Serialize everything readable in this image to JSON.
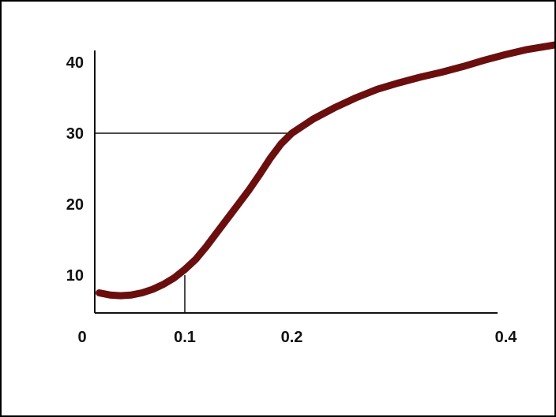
{
  "chart_data": {
    "type": "line",
    "title": "",
    "xlabel": "",
    "ylabel": "",
    "x_ticks": [
      0.1,
      0.2,
      0.4
    ],
    "x_tick_labels": [
      "0.1",
      "0.2",
      "0.4"
    ],
    "y_ticks": [
      10,
      20,
      30,
      40
    ],
    "y_tick_labels": [
      "10",
      "20",
      "30",
      "40"
    ],
    "origin_label": "0",
    "grid": false,
    "series": [
      {
        "points": [
          [
            0.02,
            7.5
          ],
          [
            0.03,
            7.2
          ],
          [
            0.04,
            7.1
          ],
          [
            0.05,
            7.2
          ],
          [
            0.06,
            7.5
          ],
          [
            0.07,
            8.0
          ],
          [
            0.08,
            8.7
          ],
          [
            0.09,
            9.6
          ],
          [
            0.1,
            10.8
          ],
          [
            0.11,
            12.2
          ],
          [
            0.12,
            14.0
          ],
          [
            0.13,
            16.0
          ],
          [
            0.14,
            18.0
          ],
          [
            0.15,
            20.0
          ],
          [
            0.16,
            22.0
          ],
          [
            0.17,
            24.2
          ],
          [
            0.18,
            26.5
          ],
          [
            0.19,
            28.5
          ],
          [
            0.2,
            30.0
          ],
          [
            0.22,
            32.0
          ],
          [
            0.24,
            33.6
          ],
          [
            0.26,
            35.0
          ],
          [
            0.28,
            36.2
          ],
          [
            0.3,
            37.1
          ],
          [
            0.32,
            37.9
          ],
          [
            0.34,
            38.6
          ],
          [
            0.36,
            39.4
          ],
          [
            0.38,
            40.3
          ],
          [
            0.4,
            41.1
          ],
          [
            0.42,
            41.8
          ],
          [
            0.44,
            42.3
          ],
          [
            0.46,
            42.8
          ]
        ]
      }
    ],
    "reference_lines": [
      {
        "axis": "y",
        "value": 30,
        "x_to": 0.2
      },
      {
        "axis": "x",
        "value": 0.1,
        "y_to": 10
      }
    ]
  },
  "colors": {
    "curve": "#6b0e0e",
    "axes": "#111111",
    "background": "#ffffff"
  }
}
